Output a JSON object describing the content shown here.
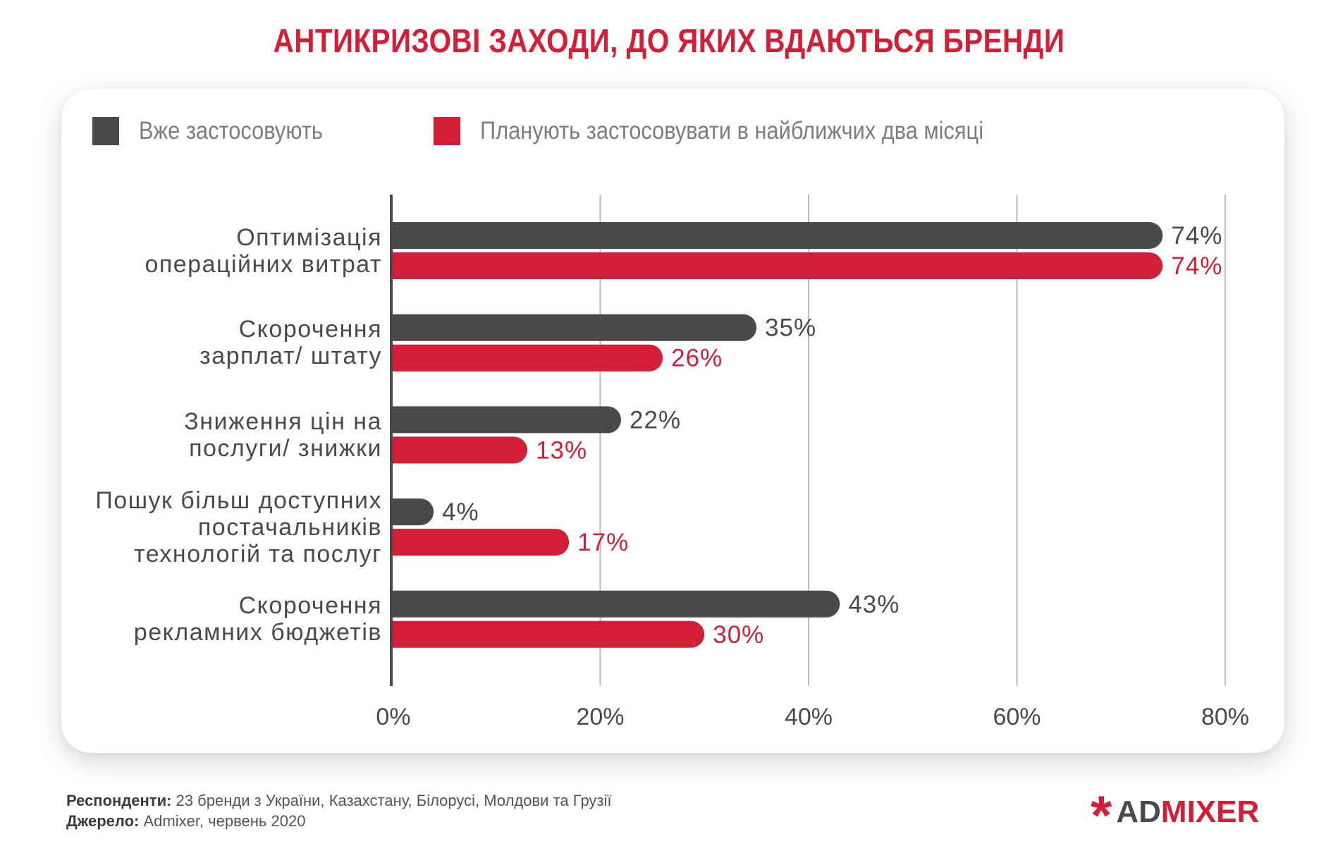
{
  "title": "АНТИКРИЗОВІ ЗАХОДИ, ДО ЯКИХ ВДАЮТЬСЯ БРЕНДИ",
  "colors": {
    "already": "#4a4a4a",
    "planned": "#d21f37",
    "title": "#d21f37",
    "grid": "#bdbdbd"
  },
  "legend": [
    {
      "label": "Вже застосовують",
      "color": "#4a4a4a"
    },
    {
      "label": "Планують застосовувати в найближчих два місяці",
      "color": "#d21f37"
    }
  ],
  "chart_data": {
    "type": "bar",
    "orientation": "horizontal",
    "title": "АНТИКРИЗОВІ ЗАХОДИ, ДО ЯКИХ ВДАЮТЬСЯ БРЕНДИ",
    "categories": [
      [
        "Оптимізація",
        "операційних витрат"
      ],
      [
        "Скорочення",
        "зарплат/ штату"
      ],
      [
        "Зниження цін на",
        "послуги/ знижки"
      ],
      [
        "Пошук більш доступних",
        "постачальників",
        "технологій та послуг"
      ],
      [
        "Скорочення",
        "рекламних бюджетів"
      ]
    ],
    "series": [
      {
        "name": "Вже застосовують",
        "values": [
          74,
          35,
          22,
          4,
          43
        ],
        "labels": [
          "74%",
          "35%",
          "22%",
          "4%",
          "43%"
        ]
      },
      {
        "name": "Планують застосовувати в найближчих два місяці",
        "values": [
          74,
          26,
          13,
          17,
          30
        ],
        "labels": [
          "74%",
          "26%",
          "13%",
          "17%",
          "30%"
        ]
      }
    ],
    "xlim": [
      0,
      80
    ],
    "xticks": [
      0,
      20,
      40,
      60,
      80
    ],
    "xtick_labels": [
      "0%",
      "20%",
      "40%",
      "60%",
      "80%"
    ],
    "xlabel": "",
    "ylabel": "",
    "grid": true,
    "legend_position": "top-left"
  },
  "footer": {
    "respondents_label": "Респонденти:",
    "respondents_text": " 23 бренди з України, Казахстану, Білорусі, Молдови та Грузії",
    "source_label": "Джерело:",
    "source_text": " Admixer, червень 2020"
  },
  "logo": {
    "star": "*",
    "part1": "AD",
    "part2": "MIXER"
  }
}
